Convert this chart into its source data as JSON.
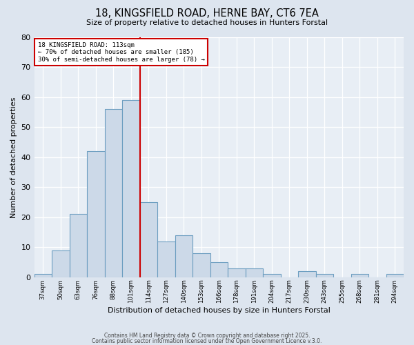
{
  "title1": "18, KINGSFIELD ROAD, HERNE BAY, CT6 7EA",
  "title2": "Size of property relative to detached houses in Hunters Forstal",
  "xlabel": "Distribution of detached houses by size in Hunters Forstal",
  "ylabel": "Number of detached properties",
  "bin_labels": [
    "37sqm",
    "50sqm",
    "63sqm",
    "76sqm",
    "88sqm",
    "101sqm",
    "114sqm",
    "127sqm",
    "140sqm",
    "153sqm",
    "166sqm",
    "178sqm",
    "191sqm",
    "204sqm",
    "217sqm",
    "230sqm",
    "243sqm",
    "255sqm",
    "268sqm",
    "281sqm",
    "294sqm"
  ],
  "bar_values": [
    1,
    9,
    21,
    42,
    56,
    59,
    25,
    12,
    14,
    8,
    5,
    3,
    3,
    1,
    0,
    2,
    1,
    0,
    1,
    0,
    1
  ],
  "bar_color": "#ccd9e8",
  "bar_edge_color": "#6b9dc0",
  "vline_after_bin": 5,
  "vline_color": "#cc0000",
  "ylim": [
    0,
    80
  ],
  "yticks": [
    0,
    10,
    20,
    30,
    40,
    50,
    60,
    70,
    80
  ],
  "annotation_title": "18 KINGSFIELD ROAD: 113sqm",
  "annotation_line2": "← 70% of detached houses are smaller (185)",
  "annotation_line3": "30% of semi-detached houses are larger (78) →",
  "annotation_box_color": "#cc0000",
  "footer1": "Contains HM Land Registry data © Crown copyright and database right 2025.",
  "footer2": "Contains public sector information licensed under the Open Government Licence v.3.0.",
  "background_color": "#dde5ef",
  "plot_bg_color": "#e8eef5",
  "grid_color": "#ffffff"
}
